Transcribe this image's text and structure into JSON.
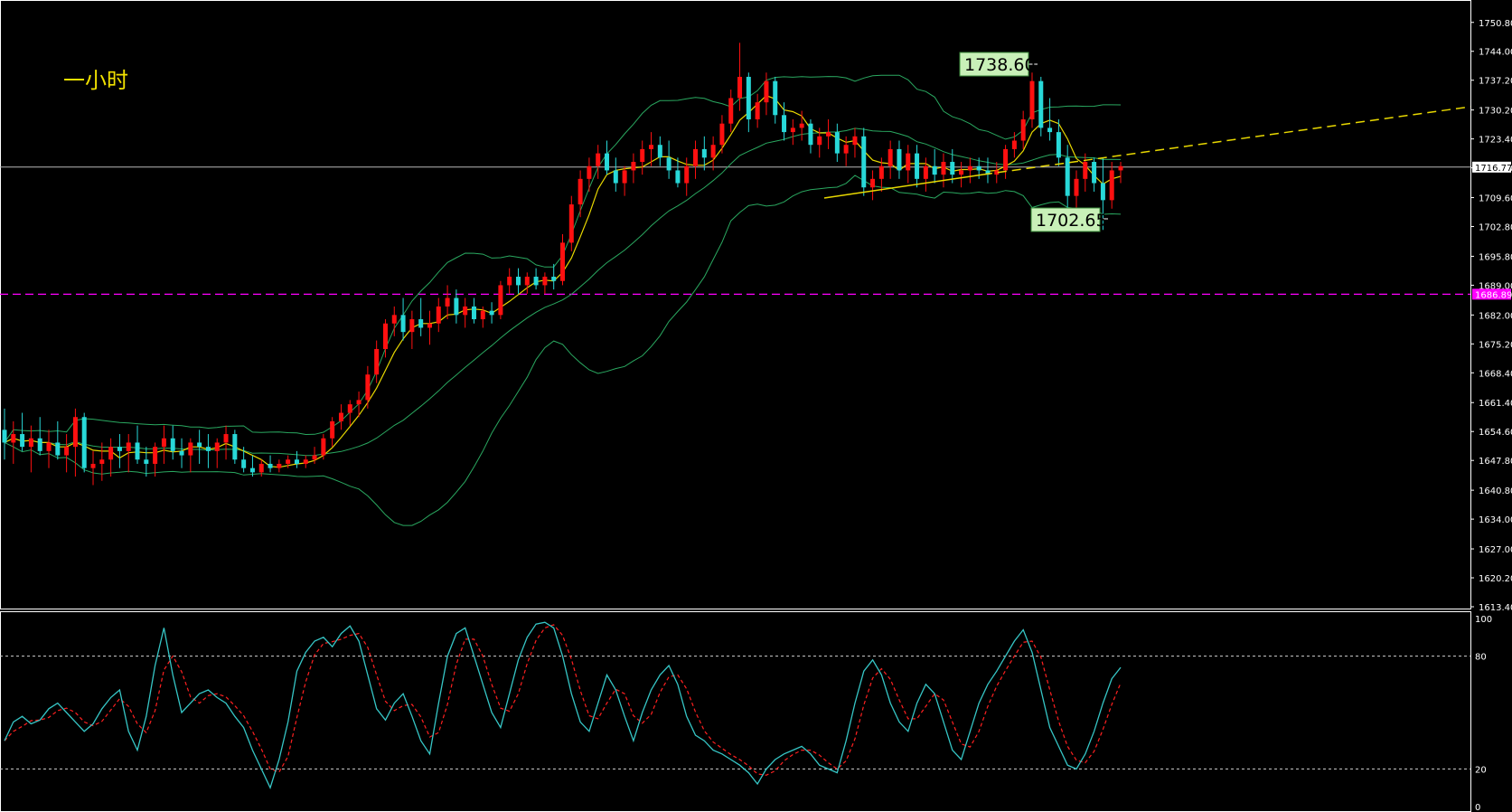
{
  "chart_data": [
    {
      "type": "candlestick",
      "timeframe_label": "一小时",
      "ylim": [
        1613.4,
        1755.0
      ],
      "yticks": [
        "1750.80",
        "1744.00",
        "1737.20",
        "1730.20",
        "1723.40",
        "1716.60",
        "1709.60",
        "1702.80",
        "1695.80",
        "1689.00",
        "1682.00",
        "1675.20",
        "1668.40",
        "1661.40",
        "1654.60",
        "1647.80",
        "1640.80",
        "1634.00",
        "1627.00",
        "1620.20",
        "1613.40"
      ],
      "current_price": "1716.77",
      "support_level": "1686.89",
      "annotations": [
        {
          "text": "1738.60",
          "price": 1738.6
        },
        {
          "text": "1702.65",
          "price": 1702.65
        }
      ],
      "candles": [
        [
          1655,
          1660,
          1648,
          1652
        ],
        [
          1652,
          1657,
          1647,
          1654
        ],
        [
          1654,
          1659,
          1650,
          1651
        ],
        [
          1651,
          1656,
          1645,
          1653
        ],
        [
          1653,
          1658,
          1649,
          1650
        ],
        [
          1650,
          1655,
          1646,
          1652
        ],
        [
          1652,
          1657,
          1648,
          1649
        ],
        [
          1649,
          1654,
          1645,
          1651
        ],
        [
          1651,
          1660,
          1644,
          1658
        ],
        [
          1658,
          1659,
          1645,
          1646
        ],
        [
          1646,
          1650,
          1642,
          1647
        ],
        [
          1647,
          1652,
          1643,
          1648
        ],
        [
          1648,
          1653,
          1644,
          1651
        ],
        [
          1651,
          1654,
          1646,
          1650
        ],
        [
          1650,
          1654,
          1645,
          1652
        ],
        [
          1652,
          1656,
          1647,
          1648
        ],
        [
          1648,
          1651,
          1644,
          1647
        ],
        [
          1647,
          1652,
          1644,
          1651
        ],
        [
          1651,
          1656,
          1647,
          1653
        ],
        [
          1653,
          1656,
          1648,
          1650
        ],
        [
          1650,
          1653,
          1646,
          1649
        ],
        [
          1649,
          1653,
          1645,
          1652
        ],
        [
          1652,
          1655,
          1647,
          1651
        ],
        [
          1651,
          1654,
          1646,
          1650
        ],
        [
          1650,
          1653,
          1646,
          1652
        ],
        [
          1652,
          1656,
          1648,
          1654
        ],
        [
          1654,
          1655,
          1647,
          1648
        ],
        [
          1648,
          1651,
          1645,
          1646
        ],
        [
          1646,
          1649,
          1644,
          1645
        ],
        [
          1645,
          1648,
          1644,
          1647
        ],
        [
          1647,
          1649,
          1645,
          1646
        ],
        [
          1646,
          1648,
          1645,
          1647
        ],
        [
          1647,
          1649,
          1646,
          1648
        ],
        [
          1648,
          1650,
          1646,
          1647
        ],
        [
          1647,
          1649,
          1646,
          1648
        ],
        [
          1648,
          1651,
          1647,
          1649
        ],
        [
          1649,
          1654,
          1648,
          1653
        ],
        [
          1653,
          1658,
          1651,
          1657
        ],
        [
          1657,
          1661,
          1655,
          1659
        ],
        [
          1659,
          1662,
          1656,
          1661
        ],
        [
          1661,
          1664,
          1658,
          1662
        ],
        [
          1662,
          1670,
          1660,
          1668
        ],
        [
          1668,
          1676,
          1666,
          1674
        ],
        [
          1674,
          1681,
          1672,
          1680
        ],
        [
          1680,
          1684,
          1677,
          1682
        ],
        [
          1682,
          1686,
          1676,
          1678
        ],
        [
          1678,
          1683,
          1674,
          1681
        ],
        [
          1681,
          1686,
          1677,
          1679
        ],
        [
          1679,
          1683,
          1675,
          1680
        ],
        [
          1680,
          1686,
          1678,
          1684
        ],
        [
          1684,
          1689,
          1681,
          1686
        ],
        [
          1686,
          1688,
          1680,
          1682
        ],
        [
          1682,
          1686,
          1679,
          1684
        ],
        [
          1684,
          1686,
          1680,
          1681
        ],
        [
          1681,
          1684,
          1679,
          1683
        ],
        [
          1683,
          1685,
          1680,
          1682
        ],
        [
          1682,
          1690,
          1681,
          1689
        ],
        [
          1689,
          1693,
          1687,
          1691
        ],
        [
          1691,
          1693,
          1687,
          1689
        ],
        [
          1689,
          1692,
          1687,
          1691
        ],
        [
          1691,
          1693,
          1688,
          1689
        ],
        [
          1689,
          1692,
          1687,
          1691
        ],
        [
          1691,
          1694,
          1688,
          1690
        ],
        [
          1690,
          1701,
          1689,
          1699
        ],
        [
          1699,
          1710,
          1697,
          1708
        ],
        [
          1708,
          1716,
          1705,
          1714
        ],
        [
          1714,
          1719,
          1711,
          1717
        ],
        [
          1717,
          1722,
          1714,
          1720
        ],
        [
          1720,
          1723,
          1715,
          1716
        ],
        [
          1716,
          1719,
          1711,
          1713
        ],
        [
          1713,
          1717,
          1710,
          1716
        ],
        [
          1716,
          1720,
          1713,
          1718
        ],
        [
          1718,
          1723,
          1715,
          1721
        ],
        [
          1721,
          1725,
          1717,
          1722
        ],
        [
          1722,
          1724,
          1717,
          1719
        ],
        [
          1719,
          1723,
          1714,
          1716
        ],
        [
          1716,
          1719,
          1712,
          1713
        ],
        [
          1713,
          1719,
          1710,
          1717
        ],
        [
          1717,
          1723,
          1714,
          1721
        ],
        [
          1721,
          1724,
          1716,
          1719
        ],
        [
          1719,
          1724,
          1716,
          1722
        ],
        [
          1722,
          1729,
          1720,
          1727
        ],
        [
          1727,
          1735,
          1725,
          1733
        ],
        [
          1733,
          1746,
          1730,
          1738
        ],
        [
          1738,
          1739,
          1725,
          1728
        ],
        [
          1728,
          1734,
          1726,
          1732
        ],
        [
          1732,
          1739,
          1729,
          1737
        ],
        [
          1737,
          1738,
          1727,
          1729
        ],
        [
          1729,
          1732,
          1723,
          1725
        ],
        [
          1725,
          1728,
          1722,
          1726
        ],
        [
          1726,
          1730,
          1723,
          1727
        ],
        [
          1727,
          1728,
          1720,
          1722
        ],
        [
          1722,
          1726,
          1719,
          1724
        ],
        [
          1724,
          1728,
          1721,
          1725
        ],
        [
          1725,
          1727,
          1718,
          1720
        ],
        [
          1720,
          1724,
          1717,
          1722
        ],
        [
          1722,
          1726,
          1719,
          1724
        ],
        [
          1724,
          1726,
          1710,
          1712
        ],
        [
          1712,
          1716,
          1709,
          1714
        ],
        [
          1714,
          1719,
          1711,
          1717
        ],
        [
          1717,
          1723,
          1714,
          1721
        ],
        [
          1721,
          1723,
          1714,
          1716
        ],
        [
          1716,
          1722,
          1713,
          1720
        ],
        [
          1720,
          1722,
          1712,
          1714
        ],
        [
          1714,
          1719,
          1711,
          1717
        ],
        [
          1717,
          1721,
          1713,
          1715
        ],
        [
          1715,
          1720,
          1712,
          1718
        ],
        [
          1718,
          1721,
          1713,
          1715
        ],
        [
          1715,
          1718,
          1712,
          1716
        ],
        [
          1716,
          1719,
          1713,
          1717
        ],
        [
          1717,
          1719,
          1714,
          1716
        ],
        [
          1716,
          1719,
          1713,
          1715
        ],
        [
          1715,
          1718,
          1713,
          1716
        ],
        [
          1716,
          1722,
          1714,
          1721
        ],
        [
          1721,
          1725,
          1719,
          1723
        ],
        [
          1723,
          1730,
          1721,
          1728
        ],
        [
          1728,
          1739,
          1726,
          1737
        ],
        [
          1737,
          1738,
          1724,
          1726
        ],
        [
          1726,
          1733,
          1723,
          1725
        ],
        [
          1725,
          1728,
          1717,
          1719
        ],
        [
          1719,
          1722,
          1706,
          1710
        ],
        [
          1710,
          1716,
          1707,
          1714
        ],
        [
          1714,
          1720,
          1711,
          1718
        ],
        [
          1718,
          1719,
          1711,
          1713
        ],
        [
          1713,
          1719,
          1702,
          1709
        ],
        [
          1709,
          1718,
          1707,
          1716
        ],
        [
          1716,
          1718,
          1713,
          1717
        ]
      ],
      "stochastic": {
        "ylim": [
          0,
          100
        ],
        "yticks": [
          "100",
          "80",
          "20",
          "0"
        ],
        "levels": [
          80,
          20
        ],
        "k": [
          35,
          45,
          48,
          44,
          46,
          52,
          55,
          50,
          45,
          40,
          44,
          52,
          58,
          62,
          40,
          30,
          48,
          75,
          95,
          70,
          50,
          55,
          60,
          62,
          58,
          55,
          48,
          42,
          30,
          20,
          10,
          25,
          45,
          72,
          82,
          88,
          90,
          85,
          92,
          96,
          88,
          70,
          52,
          46,
          55,
          60,
          48,
          35,
          28,
          55,
          80,
          92,
          95,
          80,
          65,
          50,
          42,
          60,
          78,
          90,
          97,
          98,
          95,
          80,
          60,
          45,
          40,
          55,
          70,
          62,
          48,
          35,
          50,
          62,
          70,
          75,
          65,
          48,
          38,
          35,
          30,
          28,
          25,
          22,
          18,
          12,
          20,
          25,
          28,
          30,
          32,
          28,
          22,
          20,
          18,
          35,
          55,
          72,
          78,
          70,
          55,
          45,
          40,
          55,
          65,
          60,
          45,
          30,
          25,
          40,
          55,
          65,
          72,
          80,
          88,
          94,
          82,
          62,
          42,
          32,
          22,
          20,
          28,
          40,
          55,
          68,
          74
        ]
      }
    }
  ]
}
